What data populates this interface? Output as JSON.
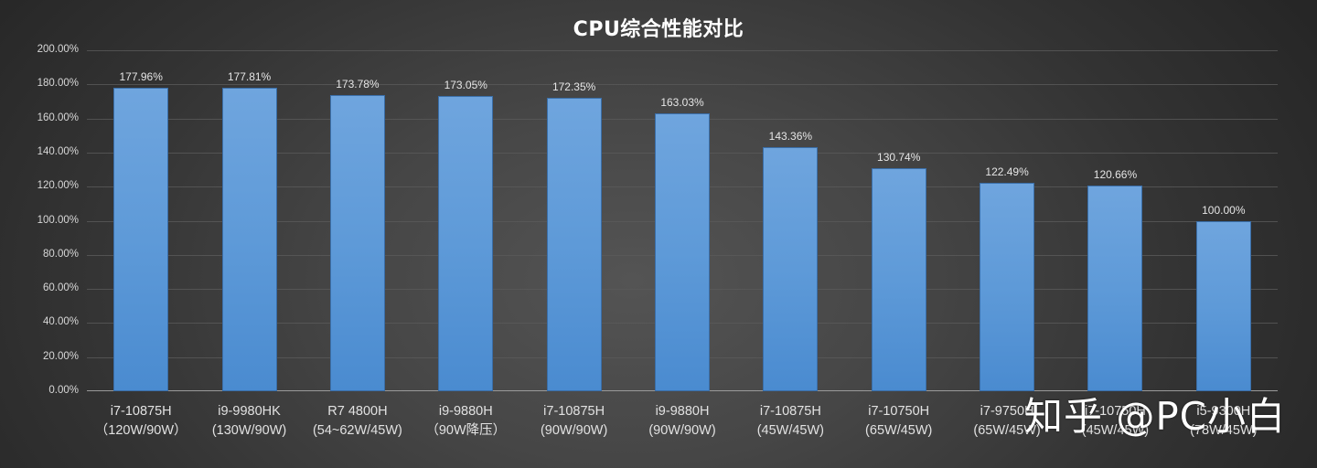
{
  "chart_data": {
    "type": "bar",
    "title": "CPU综合性能对比",
    "xlabel": "",
    "ylabel": "",
    "ylim": [
      0,
      200
    ],
    "grid": true,
    "legend": null,
    "yticks": [
      "0.00%",
      "20.00%",
      "40.00%",
      "60.00%",
      "80.00%",
      "100.00%",
      "120.00%",
      "140.00%",
      "160.00%",
      "180.00%",
      "200.00%"
    ],
    "categories": [
      {
        "name": "i7-10875H",
        "config": "（120W/90W）"
      },
      {
        "name": "i9-9980HK",
        "config": "(130W/90W)"
      },
      {
        "name": "R7 4800H",
        "config": "(54~62W/45W)"
      },
      {
        "name": "i9-9880H",
        "config": "（90W降压）"
      },
      {
        "name": "i7-10875H",
        "config": "(90W/90W)"
      },
      {
        "name": "i9-9880H",
        "config": "(90W/90W)"
      },
      {
        "name": "i7-10875H",
        "config": "(45W/45W)"
      },
      {
        "name": "i7-10750H",
        "config": "(65W/45W)"
      },
      {
        "name": "i7-9750H",
        "config": "(65W/45W)"
      },
      {
        "name": "i7-10750H",
        "config": "(45W/45W)"
      },
      {
        "name": "i5-9300H",
        "config": "(78W/45W)"
      }
    ],
    "values": [
      177.96,
      177.81,
      173.78,
      173.05,
      172.35,
      163.03,
      143.36,
      130.74,
      122.49,
      120.66,
      100.0
    ],
    "value_labels": [
      "177.96%",
      "177.81%",
      "173.78%",
      "173.05%",
      "172.35%",
      "163.03%",
      "143.36%",
      "130.74%",
      "122.49%",
      "120.66%",
      "100.00%"
    ],
    "bar_color": "#5b9bd5"
  },
  "watermark": "知乎 @PC小白"
}
